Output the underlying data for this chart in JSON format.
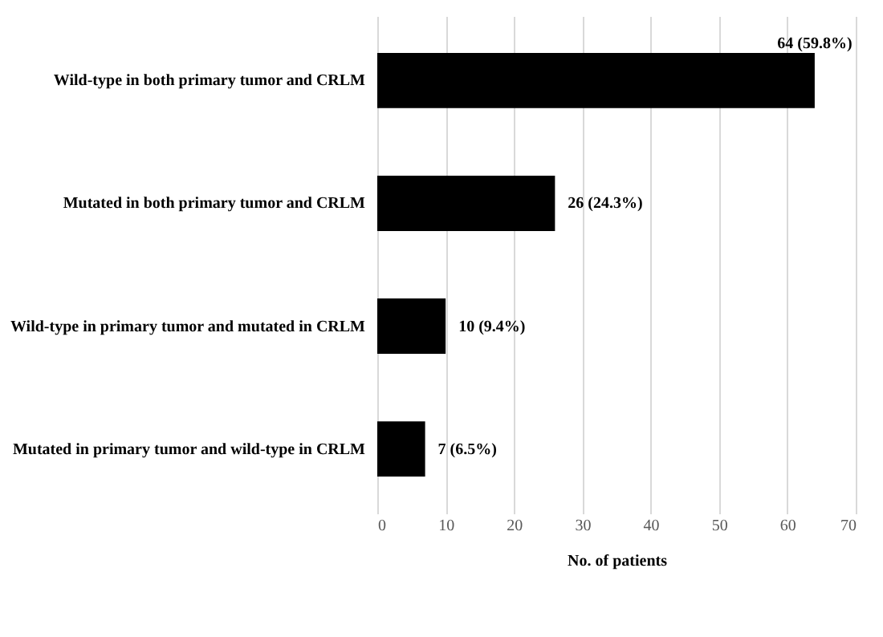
{
  "chart_data": {
    "type": "bar",
    "orientation": "horizontal",
    "xlabel": "No. of patients",
    "categories": [
      "Wild-type in both primary tumor and CRLM",
      "Mutated in both primary tumor and CRLM",
      "Wild-type in primary tumor and mutated in CRLM",
      "Mutated in primary tumor and wild-type in CRLM"
    ],
    "values": [
      64,
      26,
      10,
      7
    ],
    "value_labels": [
      "64 (59.8%)",
      "26 (24.3%)",
      "10 (9.4%)",
      "7 (6.5%)"
    ],
    "color": "#000000",
    "xlim": [
      0,
      70
    ],
    "xticks": [
      0,
      10,
      20,
      30,
      40,
      50,
      60,
      70
    ],
    "grid": "x"
  }
}
